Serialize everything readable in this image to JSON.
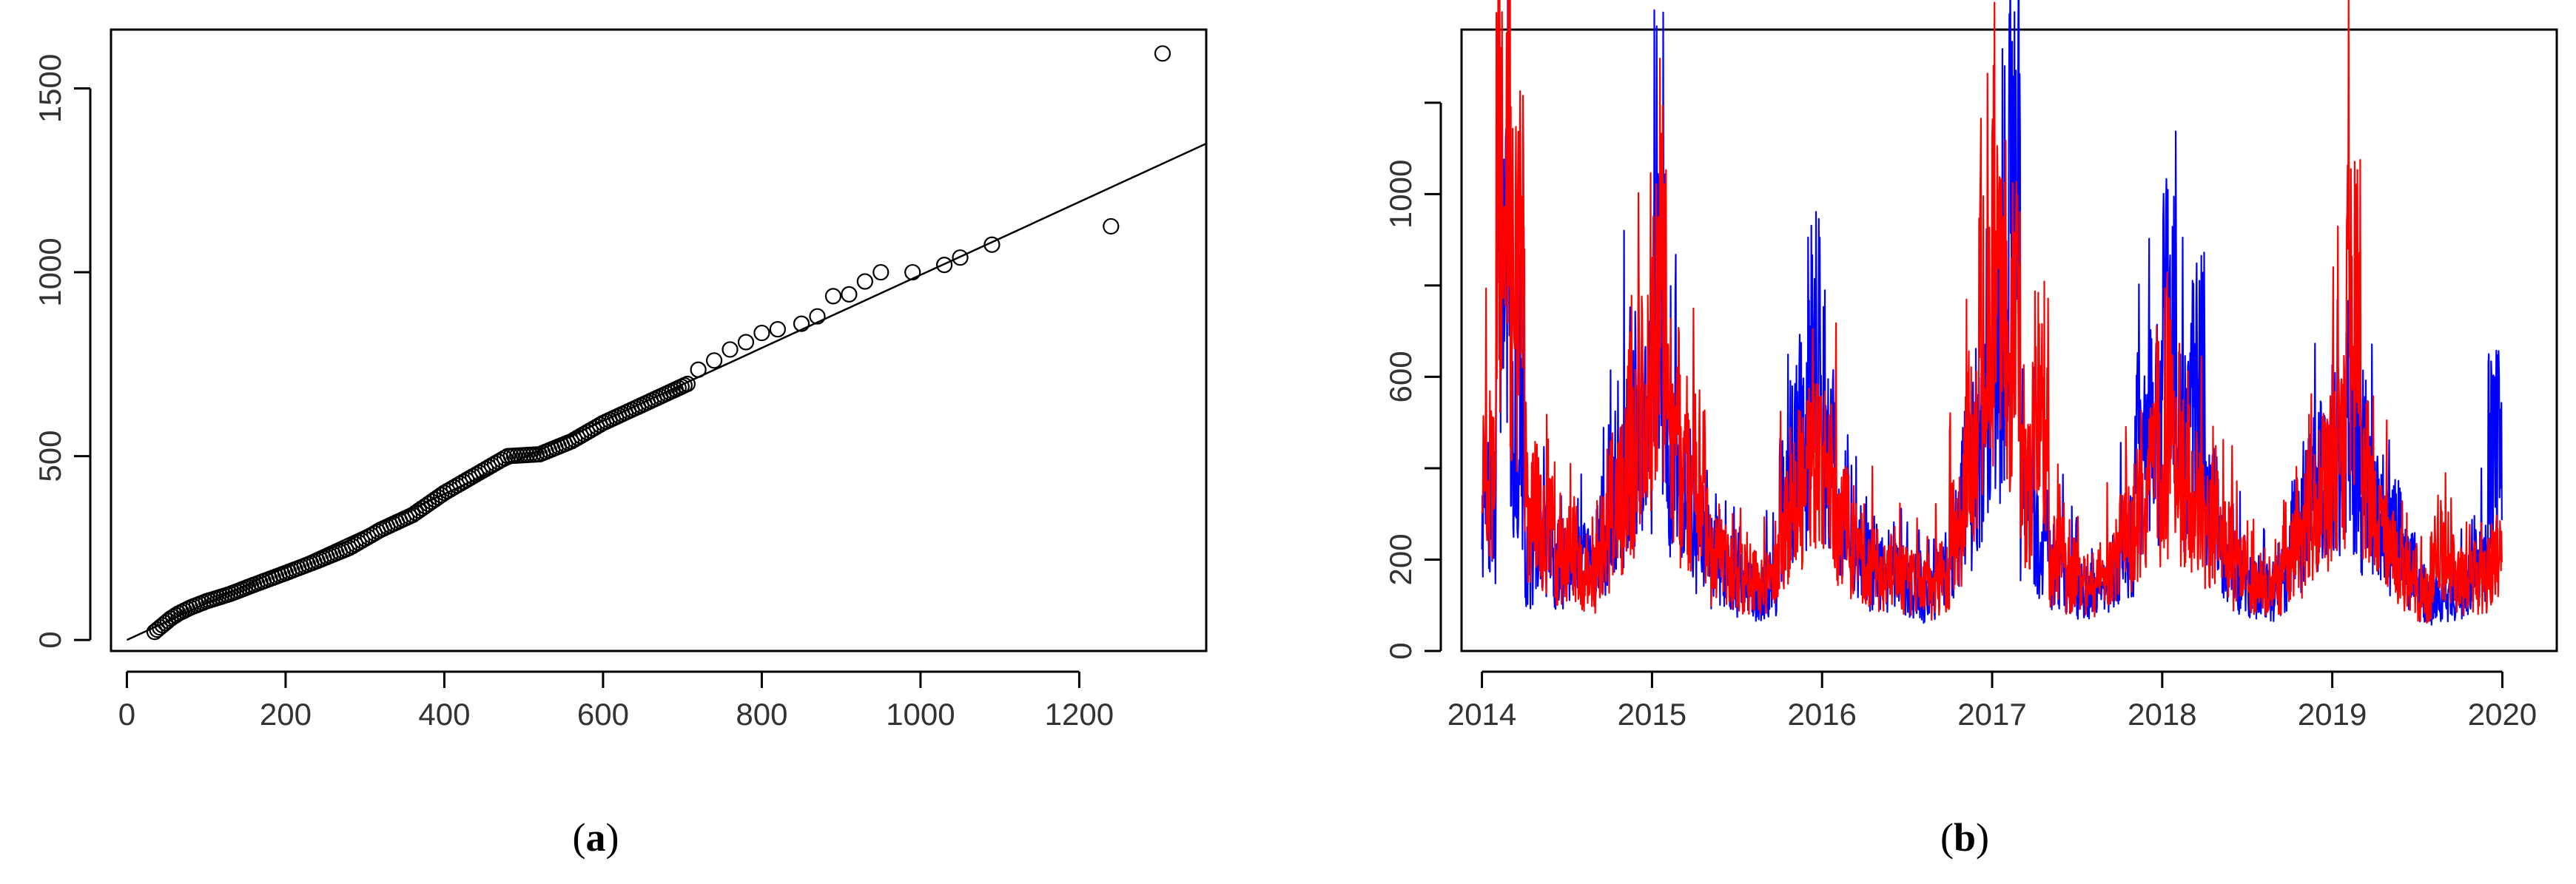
{
  "chart_data": [
    {
      "type": "scatter",
      "caption": "a",
      "x_ticks": [
        0,
        200,
        400,
        600,
        800,
        1000,
        1200
      ],
      "y_ticks": [
        0,
        500,
        1000,
        1500
      ],
      "xlim": [
        -20,
        1360
      ],
      "ylim": [
        -30,
        1660
      ],
      "grid": false,
      "reference_line": {
        "from": [
          0,
          0
        ],
        "to": [
          1360,
          1350
        ]
      },
      "points": {
        "dense_curve": [
          [
            35,
            22
          ],
          [
            45,
            40
          ],
          [
            55,
            58
          ],
          [
            65,
            72
          ],
          [
            80,
            88
          ],
          [
            100,
            105
          ],
          [
            130,
            125
          ],
          [
            160,
            150
          ],
          [
            200,
            182
          ],
          [
            240,
            215
          ],
          [
            280,
            250
          ],
          [
            320,
            300
          ],
          [
            360,
            340
          ],
          [
            400,
            400
          ],
          [
            440,
            450
          ],
          [
            480,
            500
          ],
          [
            520,
            505
          ],
          [
            560,
            540
          ],
          [
            600,
            590
          ],
          [
            640,
            630
          ],
          [
            680,
            670
          ],
          [
            710,
            700
          ]
        ],
        "sparse": [
          [
            720,
            735
          ],
          [
            740,
            760
          ],
          [
            760,
            790
          ],
          [
            780,
            810
          ],
          [
            800,
            835
          ],
          [
            820,
            845
          ],
          [
            850,
            860
          ],
          [
            870,
            880
          ],
          [
            890,
            935
          ],
          [
            910,
            940
          ],
          [
            930,
            975
          ],
          [
            950,
            1000
          ],
          [
            990,
            1000
          ],
          [
            1030,
            1020
          ],
          [
            1050,
            1040
          ],
          [
            1090,
            1075
          ],
          [
            1240,
            1125
          ],
          [
            1305,
            1595
          ]
        ]
      },
      "colors": {
        "marker": "#000000",
        "line": "#000000"
      }
    },
    {
      "type": "line",
      "caption": "b",
      "x_ticks": [
        "2014",
        "2015",
        "2016",
        "2017",
        "2018",
        "2019",
        "2020"
      ],
      "x_range": [
        "2014-01-01",
        "2020-01-01"
      ],
      "y_ticks": [
        0,
        200,
        600,
        1000
      ],
      "ylim": [
        0,
        1360
      ],
      "grid": false,
      "series": [
        {
          "color": "#0000ff",
          "values": [
            [
              "2014-01",
              "420"
            ],
            [
              "2014-02",
              "1230"
            ],
            [
              "2014-03",
              "600"
            ],
            [
              "2014-04",
              "260"
            ],
            [
              "2014-05",
              "330"
            ],
            [
              "2014-06",
              "250"
            ],
            [
              "2014-07",
              "300"
            ],
            [
              "2014-08",
              "250"
            ],
            [
              "2014-09",
              "330"
            ],
            [
              "2014-10",
              "420"
            ],
            [
              "2014-11",
              "600"
            ],
            [
              "2014-12",
              "700"
            ],
            [
              "2015-01",
              "980"
            ],
            [
              "2015-02",
              "560"
            ],
            [
              "2015-03",
              "450"
            ],
            [
              "2015-04",
              "330"
            ],
            [
              "2015-05",
              "260"
            ],
            [
              "2015-06",
              "230"
            ],
            [
              "2015-07",
              "200"
            ],
            [
              "2015-08",
              "180"
            ],
            [
              "2015-09",
              "200"
            ],
            [
              "2015-10",
              "430"
            ],
            [
              "2015-11",
              "620"
            ],
            [
              "2015-12",
              "910"
            ],
            [
              "2016-01",
              "560"
            ],
            [
              "2016-02",
              "400"
            ],
            [
              "2016-03",
              "290"
            ],
            [
              "2016-04",
              "250"
            ],
            [
              "2016-05",
              "230"
            ],
            [
              "2016-06",
              "210"
            ],
            [
              "2016-07",
              "190"
            ],
            [
              "2016-08",
              "170"
            ],
            [
              "2016-09",
              "210"
            ],
            [
              "2016-10",
              "320"
            ],
            [
              "2016-11",
              "500"
            ],
            [
              "2016-12",
              "640"
            ],
            [
              "2017-01",
              "870"
            ],
            [
              "2017-02",
              "1310"
            ],
            [
              "2017-03",
              "420"
            ],
            [
              "2017-04",
              "320"
            ],
            [
              "2017-05",
              "250"
            ],
            [
              "2017-06",
              "210"
            ],
            [
              "2017-07",
              "190"
            ],
            [
              "2017-08",
              "180"
            ],
            [
              "2017-09",
              "230"
            ],
            [
              "2017-10",
              "330"
            ],
            [
              "2017-11",
              "550"
            ],
            [
              "2017-12",
              "650"
            ],
            [
              "2018-01",
              "950"
            ],
            [
              "2018-02",
              "620"
            ],
            [
              "2018-03",
              "800"
            ],
            [
              "2018-04",
              "420"
            ],
            [
              "2018-05",
              "300"
            ],
            [
              "2018-06",
              "230"
            ],
            [
              "2018-07",
              "190"
            ],
            [
              "2018-08",
              "180"
            ],
            [
              "2018-09",
              "210"
            ],
            [
              "2018-10",
              "350"
            ],
            [
              "2018-11",
              "470"
            ],
            [
              "2018-12",
              "560"
            ],
            [
              "2019-01",
              "580"
            ],
            [
              "2019-02",
              "560"
            ],
            [
              "2019-03",
              "440"
            ],
            [
              "2019-04",
              "390"
            ],
            [
              "2019-05",
              "340"
            ],
            [
              "2019-06",
              "250"
            ],
            [
              "2019-07",
              "180"
            ],
            [
              "2019-08",
              "150"
            ],
            [
              "2019-09",
              "160"
            ],
            [
              "2019-10",
              "200"
            ],
            [
              "2019-11",
              "290"
            ],
            [
              "2019-12",
              "600"
            ]
          ]
        },
        {
          "color": "#ff0000",
          "values": [
            [
              "2014-01",
              "530"
            ],
            [
              "2014-02",
              "1370"
            ],
            [
              "2014-03",
              "1120"
            ],
            [
              "2014-04",
              "420"
            ],
            [
              "2014-05",
              "350"
            ],
            [
              "2014-06",
              "280"
            ],
            [
              "2014-07",
              "290"
            ],
            [
              "2014-08",
              "230"
            ],
            [
              "2014-09",
              "320"
            ],
            [
              "2014-10",
              "450"
            ],
            [
              "2014-11",
              "580"
            ],
            [
              "2014-12",
              "720"
            ],
            [
              "2015-01",
              "960"
            ],
            [
              "2015-02",
              "680"
            ],
            [
              "2015-03",
              "500"
            ],
            [
              "2015-04",
              "380"
            ],
            [
              "2015-05",
              "280"
            ],
            [
              "2015-06",
              "250"
            ],
            [
              "2015-07",
              "220"
            ],
            [
              "2015-08",
              "200"
            ],
            [
              "2015-09",
              "220"
            ],
            [
              "2015-10",
              "380"
            ],
            [
              "2015-11",
              "500"
            ],
            [
              "2015-12",
              "560"
            ],
            [
              "2016-01",
              "500"
            ],
            [
              "2016-02",
              "380"
            ],
            [
              "2016-03",
              "300"
            ],
            [
              "2016-04",
              "270"
            ],
            [
              "2016-05",
              "240"
            ],
            [
              "2016-06",
              "220"
            ],
            [
              "2016-07",
              "200"
            ],
            [
              "2016-08",
              "180"
            ],
            [
              "2016-09",
              "220"
            ],
            [
              "2016-10",
              "350"
            ],
            [
              "2016-11",
              "600"
            ],
            [
              "2016-12",
              "880"
            ],
            [
              "2017-01",
              "1040"
            ],
            [
              "2017-02",
              "950"
            ],
            [
              "2017-03",
              "480"
            ],
            [
              "2017-04",
              "740"
            ],
            [
              "2017-05",
              "270"
            ],
            [
              "2017-06",
              "230"
            ],
            [
              "2017-07",
              "200"
            ],
            [
              "2017-08",
              "190"
            ],
            [
              "2017-09",
              "240"
            ],
            [
              "2017-10",
              "340"
            ],
            [
              "2017-11",
              "430"
            ],
            [
              "2017-12",
              "500"
            ],
            [
              "2018-01",
              "560"
            ],
            [
              "2018-02",
              "500"
            ],
            [
              "2018-03",
              "420"
            ],
            [
              "2018-04",
              "380"
            ],
            [
              "2018-05",
              "300"
            ],
            [
              "2018-06",
              "240"
            ],
            [
              "2018-07",
              "200"
            ],
            [
              "2018-08",
              "190"
            ],
            [
              "2018-09",
              "220"
            ],
            [
              "2018-10",
              "300"
            ],
            [
              "2018-11",
              "400"
            ],
            [
              "2018-12",
              "480"
            ],
            [
              "2019-01",
              "620"
            ],
            [
              "2019-02",
              "1000"
            ],
            [
              "2019-03",
              "520"
            ],
            [
              "2019-04",
              "360"
            ],
            [
              "2019-05",
              "280"
            ],
            [
              "2019-06",
              "220"
            ],
            [
              "2019-07",
              "170"
            ],
            [
              "2019-08",
              "280"
            ],
            [
              "2019-09",
              "240"
            ],
            [
              "2019-10",
              "210"
            ],
            [
              "2019-11",
              "230"
            ],
            [
              "2019-12",
              "280"
            ]
          ]
        }
      ]
    }
  ]
}
